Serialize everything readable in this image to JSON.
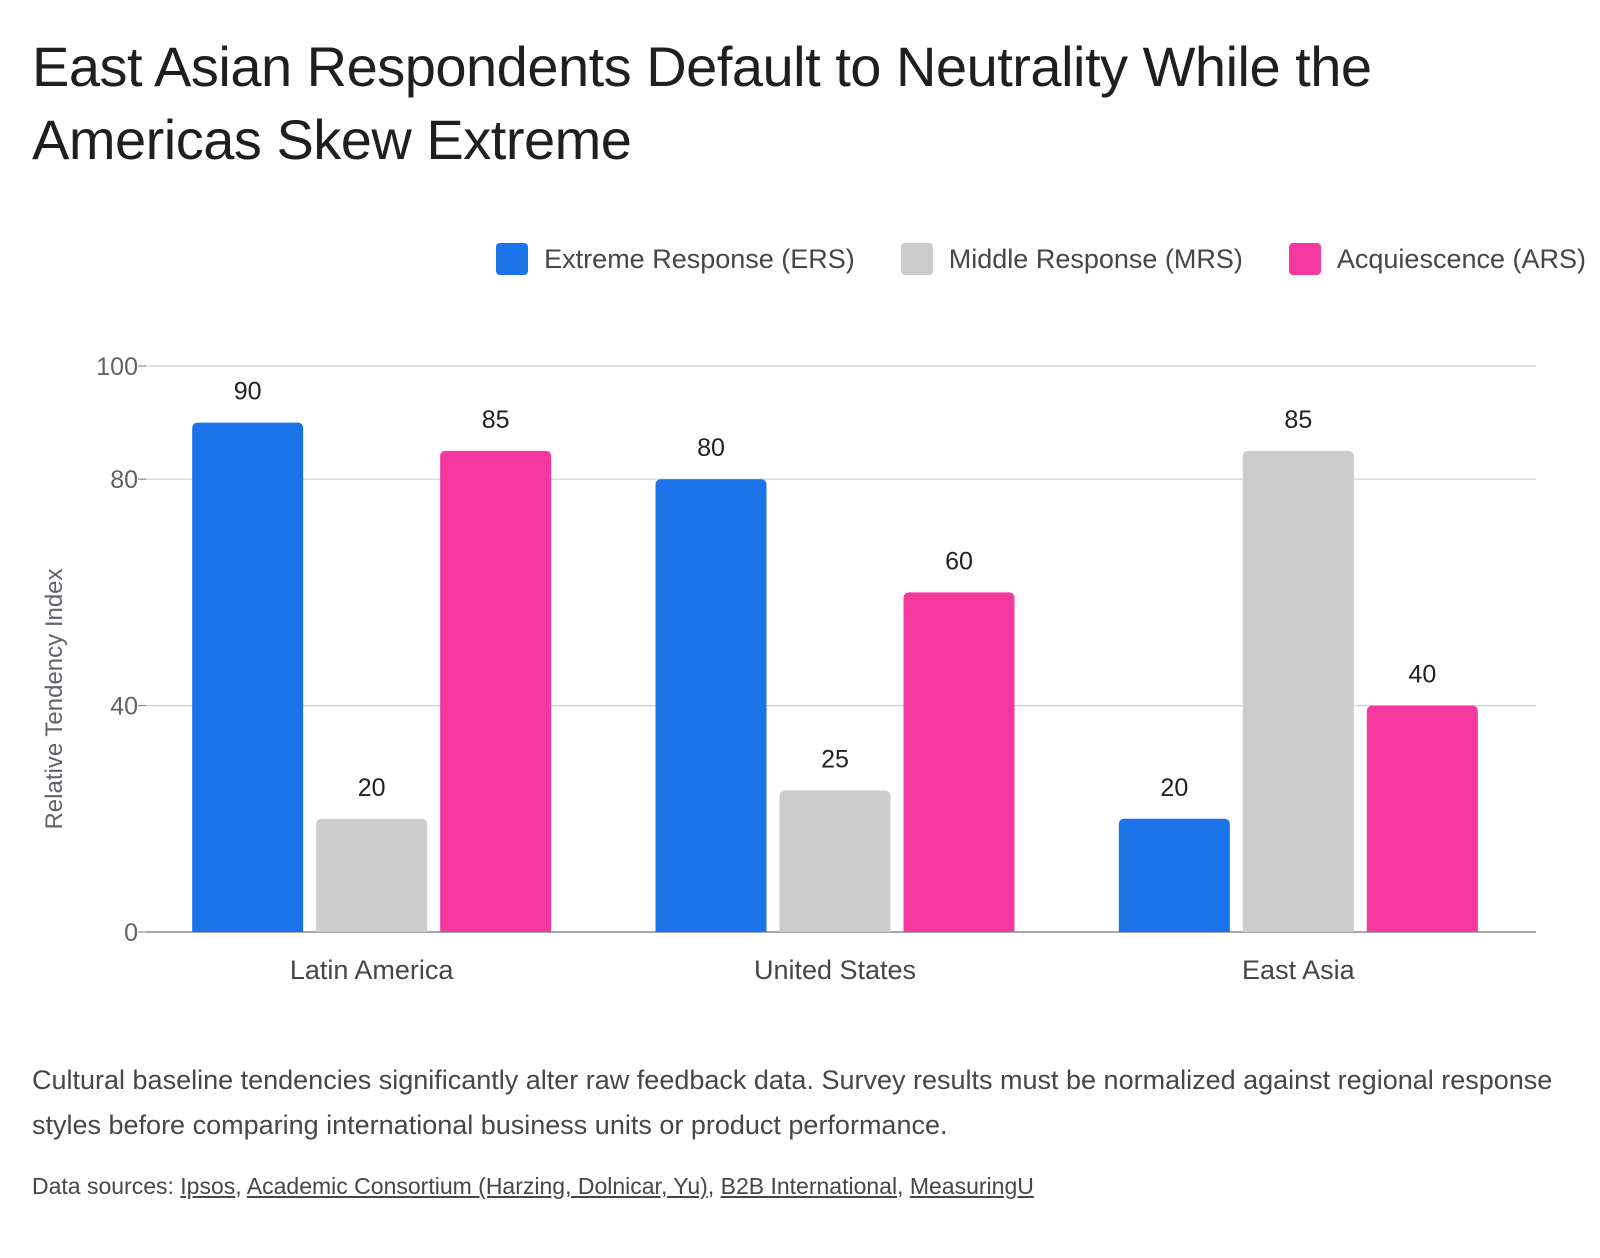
{
  "title": "East Asian Respondents Default to Neutrality While the Americas Skew Extreme",
  "caption": "Cultural baseline tendencies significantly alter raw feedback data. Survey results must be normalized against regional response styles before comparing international business units or product performance.",
  "sources": {
    "prefix": "Data sources: ",
    "links": [
      "Ipsos",
      "Academic Consortium (Harzing, Dolnicar, Yu)",
      "B2B International",
      "MeasuringU"
    ]
  },
  "chart_data": {
    "type": "bar",
    "categories": [
      "Latin America",
      "United States",
      "East Asia"
    ],
    "series": [
      {
        "name": "Extreme Response (ERS)",
        "color": "#1a73e8",
        "values": [
          90,
          80,
          20
        ]
      },
      {
        "name": "Middle Response (MRS)",
        "color": "#cccccc",
        "values": [
          20,
          25,
          85
        ]
      },
      {
        "name": "Acquiescence (ARS)",
        "color": "#f538a0",
        "values": [
          85,
          60,
          40
        ]
      }
    ],
    "ylabel": "Relative Tendency Index",
    "xlabel": "",
    "ylim": [
      0,
      100
    ],
    "yticks": [
      0,
      40,
      80,
      100
    ],
    "grid": true,
    "legend_position": "top-right",
    "data_labels": true
  }
}
